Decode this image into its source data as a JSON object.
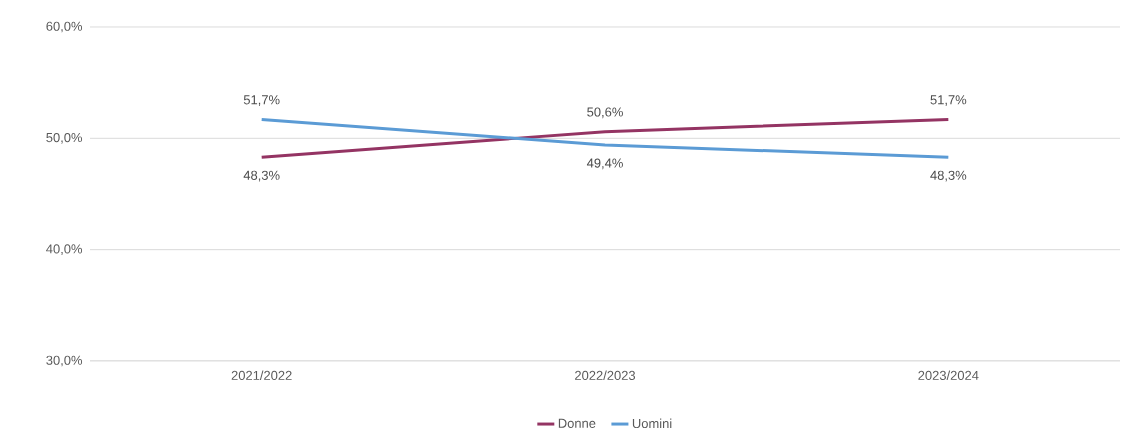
{
  "chart_data": {
    "type": "line",
    "categories": [
      "2021/2022",
      "2022/2023",
      "2023/2024"
    ],
    "series": [
      {
        "name": "Donne",
        "color": "#943463",
        "values": [
          48.3,
          50.6,
          51.7
        ],
        "value_labels": [
          "48,3%",
          "50,6%",
          "51,7%"
        ]
      },
      {
        "name": "Uomini",
        "color": "#5b9bd5",
        "values": [
          51.7,
          49.4,
          48.3
        ],
        "value_labels": [
          "51,7%",
          "49,4%",
          "48,3%"
        ]
      }
    ],
    "ylim": [
      30,
      60
    ],
    "yticks": [
      {
        "value": 30,
        "label": "30,0%"
      },
      {
        "value": 40,
        "label": "40,0%"
      },
      {
        "value": 50,
        "label": "50,0%"
      },
      {
        "value": 60,
        "label": "60,0%"
      }
    ],
    "grid": "y",
    "legend": "bottom",
    "marker": "none",
    "line_style": "solid"
  }
}
